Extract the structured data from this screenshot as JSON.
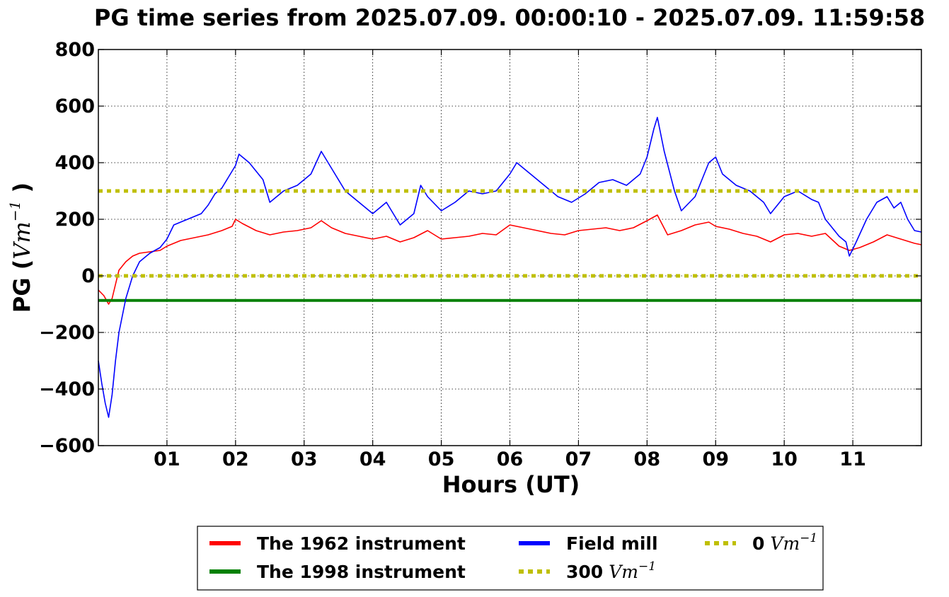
{
  "chart_data": {
    "type": "line",
    "title": "PG time series from 2025.07.09. 00:00:10 - 2025.07.09. 11:59:58",
    "xlabel": "Hours (UT)",
    "ylabel": {
      "prefix": "PG (",
      "unit": "Vm",
      "sup": "−1",
      "suffix": " )"
    },
    "xlim": [
      0,
      12
    ],
    "ylim": [
      -600,
      800
    ],
    "grid": true,
    "legend_position": "below",
    "x_ticks": [
      {
        "value": 1,
        "label": "01"
      },
      {
        "value": 2,
        "label": "02"
      },
      {
        "value": 3,
        "label": "03"
      },
      {
        "value": 4,
        "label": "04"
      },
      {
        "value": 5,
        "label": "05"
      },
      {
        "value": 6,
        "label": "06"
      },
      {
        "value": 7,
        "label": "07"
      },
      {
        "value": 8,
        "label": "08"
      },
      {
        "value": 9,
        "label": "09"
      },
      {
        "value": 10,
        "label": "10"
      },
      {
        "value": 11,
        "label": "11"
      }
    ],
    "y_ticks": [
      {
        "value": -600,
        "label": "−600"
      },
      {
        "value": -400,
        "label": "−400"
      },
      {
        "value": -200,
        "label": "−200"
      },
      {
        "value": 0,
        "label": "0"
      },
      {
        "value": 200,
        "label": "200"
      },
      {
        "value": 400,
        "label": "400"
      },
      {
        "value": 600,
        "label": "600"
      },
      {
        "value": 800,
        "label": "800"
      }
    ],
    "series": [
      {
        "name": "The 1962 instrument",
        "color": "#ff0000",
        "style": "solid",
        "x": [
          0,
          0.08,
          0.15,
          0.2,
          0.25,
          0.3,
          0.4,
          0.5,
          0.6,
          0.75,
          0.9,
          1.0,
          1.2,
          1.4,
          1.6,
          1.8,
          1.95,
          2.0,
          2.1,
          2.3,
          2.5,
          2.7,
          2.9,
          3.1,
          3.25,
          3.4,
          3.6,
          3.8,
          4.0,
          4.2,
          4.4,
          4.6,
          4.8,
          5.0,
          5.2,
          5.4,
          5.6,
          5.8,
          6.0,
          6.2,
          6.4,
          6.6,
          6.8,
          7.0,
          7.2,
          7.4,
          7.6,
          7.8,
          8.0,
          8.15,
          8.3,
          8.5,
          8.7,
          8.9,
          9.0,
          9.2,
          9.4,
          9.6,
          9.8,
          10.0,
          10.2,
          10.4,
          10.6,
          10.8,
          10.95,
          11.1,
          11.3,
          11.5,
          11.7,
          11.9,
          12.0
        ],
        "y": [
          -50,
          -70,
          -100,
          -80,
          -30,
          20,
          50,
          70,
          80,
          85,
          90,
          105,
          125,
          135,
          145,
          160,
          175,
          200,
          185,
          160,
          145,
          155,
          160,
          170,
          195,
          170,
          150,
          140,
          130,
          140,
          120,
          135,
          160,
          130,
          135,
          140,
          150,
          145,
          180,
          170,
          160,
          150,
          145,
          160,
          165,
          170,
          160,
          170,
          195,
          215,
          145,
          160,
          180,
          190,
          175,
          165,
          150,
          140,
          120,
          145,
          150,
          140,
          150,
          105,
          90,
          100,
          120,
          145,
          130,
          115,
          110
        ]
      },
      {
        "name": "The 1998 instrument",
        "color": "#008000",
        "style": "solid",
        "x": [
          0,
          12
        ],
        "y": [
          -87,
          -87
        ]
      },
      {
        "name": "Field mill",
        "color": "#0000ff",
        "style": "solid",
        "x": [
          0,
          0.05,
          0.1,
          0.15,
          0.2,
          0.25,
          0.3,
          0.4,
          0.5,
          0.6,
          0.75,
          0.9,
          1.0,
          1.1,
          1.3,
          1.5,
          1.6,
          1.7,
          1.8,
          1.9,
          2.0,
          2.05,
          2.2,
          2.4,
          2.5,
          2.7,
          2.9,
          3.1,
          3.25,
          3.4,
          3.6,
          3.8,
          4.0,
          4.2,
          4.4,
          4.6,
          4.7,
          4.8,
          5.0,
          5.2,
          5.4,
          5.6,
          5.8,
          6.0,
          6.1,
          6.3,
          6.5,
          6.7,
          6.9,
          7.1,
          7.3,
          7.5,
          7.7,
          7.9,
          8.0,
          8.1,
          8.15,
          8.25,
          8.4,
          8.5,
          8.7,
          8.8,
          8.9,
          9.0,
          9.1,
          9.3,
          9.5,
          9.7,
          9.8,
          10.0,
          10.2,
          10.4,
          10.5,
          10.6,
          10.7,
          10.8,
          10.9,
          10.95,
          11.05,
          11.2,
          11.35,
          11.5,
          11.6,
          11.7,
          11.8,
          11.9,
          12.0
        ],
        "y": [
          -300,
          -380,
          -450,
          -500,
          -420,
          -300,
          -200,
          -80,
          0,
          50,
          80,
          100,
          130,
          180,
          200,
          220,
          250,
          290,
          310,
          350,
          390,
          430,
          400,
          340,
          260,
          300,
          320,
          360,
          440,
          380,
          300,
          260,
          220,
          260,
          180,
          220,
          320,
          280,
          230,
          260,
          300,
          290,
          300,
          360,
          400,
          360,
          320,
          280,
          260,
          290,
          330,
          340,
          320,
          360,
          420,
          520,
          560,
          440,
          300,
          230,
          280,
          340,
          400,
          420,
          360,
          320,
          300,
          260,
          220,
          280,
          300,
          270,
          260,
          200,
          170,
          140,
          120,
          70,
          120,
          200,
          260,
          280,
          240,
          260,
          200,
          160,
          155
        ]
      },
      {
        "name": "300",
        "legend_unit": "Vm",
        "legend_sup": "−1",
        "color": "#bfbf00",
        "style": "dotted",
        "x": [
          0,
          12
        ],
        "y": [
          300,
          300
        ]
      },
      {
        "name": "0",
        "legend_unit": "Vm",
        "legend_sup": "−1",
        "color": "#bfbf00",
        "style": "dotted",
        "x": [
          0,
          12
        ],
        "y": [
          0,
          0
        ]
      }
    ]
  }
}
